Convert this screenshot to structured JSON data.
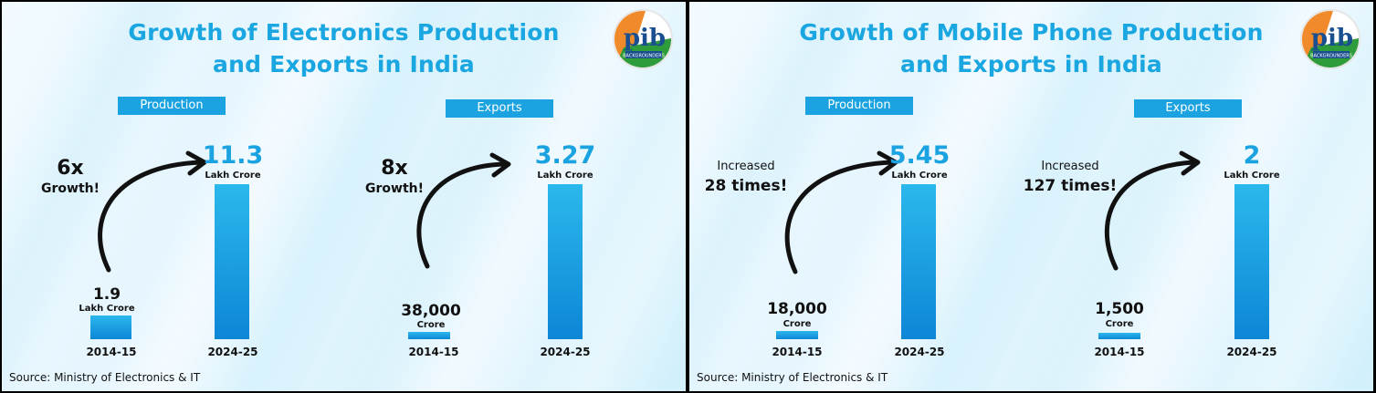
{
  "colors": {
    "accent": "#1aa6e0",
    "bar": "#0d86d6"
  },
  "logo": {
    "text": "pib",
    "subtext": "BACKGROUNDERS"
  },
  "panels": [
    {
      "title_line1": "Growth of Electronics Production",
      "title_line2": "and Exports in India",
      "source": "Source: Ministry of Electronics & IT",
      "production": {
        "tag": "Production",
        "growth_line1": "6x",
        "growth_line2": "Growth!",
        "start_label": "1.9",
        "start_unit": "Lakh Crore",
        "start_year": "2014-15",
        "end_label": "11.3",
        "end_unit": "Lakh Crore",
        "end_year": "2024-25"
      },
      "exports": {
        "tag": "Exports",
        "growth_line1": "8x",
        "growth_line2": "Growth!",
        "start_label": "38,000",
        "start_unit": "Crore",
        "start_year": "2014-15",
        "end_label": "3.27",
        "end_unit": "Lakh Crore",
        "end_year": "2024-25"
      }
    },
    {
      "title_line1": "Growth of Mobile Phone Production",
      "title_line2": "and Exports in India",
      "source": "Source: Ministry of Electronics & IT",
      "production": {
        "tag": "Production",
        "growth_line1": "Increased",
        "growth_line2": "28 times!",
        "start_label": "18,000",
        "start_unit": "Crore",
        "start_year": "2014-15",
        "end_label": "5.45",
        "end_unit": "Lakh Crore",
        "end_year": "2024-25"
      },
      "exports": {
        "tag": "Exports",
        "growth_line1": "Increased",
        "growth_line2": "127 times!",
        "start_label": "1,500",
        "start_unit": "Crore",
        "start_year": "2014-15",
        "end_label": "2",
        "end_unit": "Lakh Crore",
        "end_year": "2024-25"
      }
    }
  ],
  "chart_data": [
    {
      "type": "bar",
      "title": "Growth of Electronics Production and Exports in India — Production",
      "categories": [
        "2014-15",
        "2024-25"
      ],
      "values": [
        1.9,
        11.3
      ],
      "unit": "Lakh Crore"
    },
    {
      "type": "bar",
      "title": "Growth of Electronics Production and Exports in India — Exports",
      "categories": [
        "2014-15",
        "2024-25"
      ],
      "values": [
        0.38,
        3.27
      ],
      "unit": "Lakh Crore"
    },
    {
      "type": "bar",
      "title": "Growth of Mobile Phone Production and Exports in India — Production",
      "categories": [
        "2014-15",
        "2024-25"
      ],
      "values": [
        0.18,
        5.45
      ],
      "unit": "Lakh Crore"
    },
    {
      "type": "bar",
      "title": "Growth of Mobile Phone Production and Exports in India — Exports",
      "categories": [
        "2014-15",
        "2024-25"
      ],
      "values": [
        0.015,
        2
      ],
      "unit": "Lakh Crore"
    }
  ]
}
